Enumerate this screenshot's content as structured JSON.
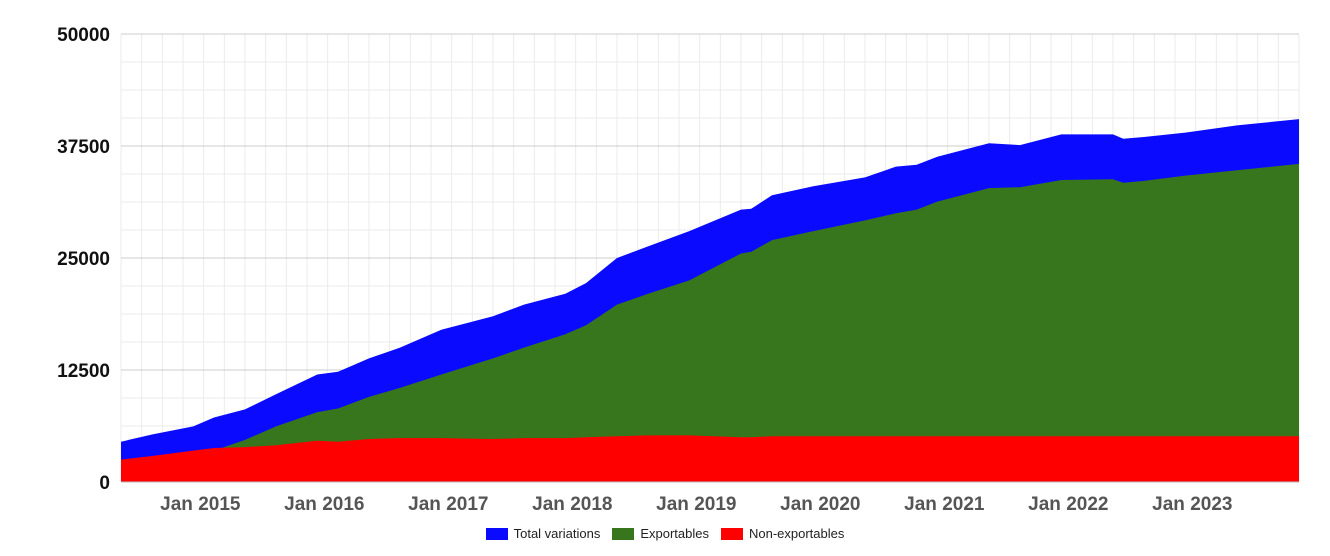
{
  "chart_data": {
    "type": "area",
    "stacked": false,
    "x_unit": "month",
    "x_start": "2014-06",
    "x_end": "2023-12",
    "ylim": [
      0,
      50000
    ],
    "yticks": [
      0,
      12500,
      25000,
      37500,
      50000
    ],
    "xticks": [
      "Jan 2015",
      "Jan 2016",
      "Jan 2017",
      "Jan 2018",
      "Jan 2019",
      "Jan 2020",
      "Jan 2021",
      "Jan 2022",
      "Jan 2023"
    ],
    "grid": true,
    "legend_position": "bottom",
    "title": "",
    "xlabel": "",
    "ylabel": "",
    "series": [
      {
        "name": "Total variations",
        "color": "#0a0aff",
        "points": [
          [
            "2014-06",
            4500
          ],
          [
            "2014-09",
            5300
          ],
          [
            "2015-01",
            6200
          ],
          [
            "2015-03",
            7200
          ],
          [
            "2015-06",
            8100
          ],
          [
            "2015-09",
            9800
          ],
          [
            "2016-01",
            12000
          ],
          [
            "2016-03",
            12300
          ],
          [
            "2016-06",
            13800
          ],
          [
            "2016-09",
            15000
          ],
          [
            "2017-01",
            17000
          ],
          [
            "2017-06",
            18500
          ],
          [
            "2017-09",
            19800
          ],
          [
            "2018-01",
            21000
          ],
          [
            "2018-03",
            22200
          ],
          [
            "2018-06",
            25000
          ],
          [
            "2018-09",
            26300
          ],
          [
            "2019-01",
            28000
          ],
          [
            "2019-06",
            30400
          ],
          [
            "2019-07",
            30500
          ],
          [
            "2019-09",
            32000
          ],
          [
            "2020-01",
            33000
          ],
          [
            "2020-06",
            34000
          ],
          [
            "2020-09",
            35200
          ],
          [
            "2020-11",
            35400
          ],
          [
            "2021-01",
            36300
          ],
          [
            "2021-06",
            37800
          ],
          [
            "2021-09",
            37600
          ],
          [
            "2022-01",
            38800
          ],
          [
            "2022-06",
            38800
          ],
          [
            "2022-07",
            38300
          ],
          [
            "2022-09",
            38500
          ],
          [
            "2023-01",
            39000
          ],
          [
            "2023-06",
            39800
          ],
          [
            "2023-12",
            40500
          ]
        ]
      },
      {
        "name": "Exportables",
        "color": "#38761d",
        "points": [
          [
            "2014-06",
            1800
          ],
          [
            "2014-09",
            2200
          ],
          [
            "2015-01",
            2900
          ],
          [
            "2015-03",
            3500
          ],
          [
            "2015-06",
            4700
          ],
          [
            "2015-09",
            6200
          ],
          [
            "2016-01",
            7800
          ],
          [
            "2016-03",
            8200
          ],
          [
            "2016-06",
            9500
          ],
          [
            "2016-09",
            10500
          ],
          [
            "2017-01",
            12000
          ],
          [
            "2017-06",
            13800
          ],
          [
            "2017-09",
            15000
          ],
          [
            "2018-01",
            16500
          ],
          [
            "2018-03",
            17500
          ],
          [
            "2018-06",
            19800
          ],
          [
            "2018-09",
            21000
          ],
          [
            "2019-01",
            22500
          ],
          [
            "2019-06",
            25500
          ],
          [
            "2019-07",
            25700
          ],
          [
            "2019-09",
            27000
          ],
          [
            "2020-01",
            28000
          ],
          [
            "2020-06",
            29200
          ],
          [
            "2020-09",
            30000
          ],
          [
            "2020-11",
            30400
          ],
          [
            "2021-01",
            31300
          ],
          [
            "2021-06",
            32800
          ],
          [
            "2021-09",
            32900
          ],
          [
            "2022-01",
            33700
          ],
          [
            "2022-06",
            33800
          ],
          [
            "2022-07",
            33400
          ],
          [
            "2022-09",
            33600
          ],
          [
            "2023-01",
            34200
          ],
          [
            "2023-06",
            34800
          ],
          [
            "2023-12",
            35500
          ]
        ]
      },
      {
        "name": "Non-exportables",
        "color": "#ff0000",
        "points": [
          [
            "2014-06",
            2500
          ],
          [
            "2014-09",
            2900
          ],
          [
            "2015-01",
            3500
          ],
          [
            "2015-03",
            3800
          ],
          [
            "2015-06",
            3900
          ],
          [
            "2015-09",
            4100
          ],
          [
            "2016-01",
            4600
          ],
          [
            "2016-03",
            4500
          ],
          [
            "2016-06",
            4800
          ],
          [
            "2016-09",
            4900
          ],
          [
            "2017-01",
            4900
          ],
          [
            "2017-06",
            4800
          ],
          [
            "2017-09",
            4900
          ],
          [
            "2018-01",
            4900
          ],
          [
            "2018-03",
            5000
          ],
          [
            "2018-06",
            5100
          ],
          [
            "2018-09",
            5200
          ],
          [
            "2019-01",
            5200
          ],
          [
            "2019-06",
            5000
          ],
          [
            "2019-07",
            5000
          ],
          [
            "2019-09",
            5100
          ],
          [
            "2020-01",
            5100
          ],
          [
            "2020-06",
            5100
          ],
          [
            "2020-09",
            5100
          ],
          [
            "2020-11",
            5100
          ],
          [
            "2021-01",
            5100
          ],
          [
            "2021-06",
            5100
          ],
          [
            "2021-09",
            5100
          ],
          [
            "2022-01",
            5100
          ],
          [
            "2022-06",
            5100
          ],
          [
            "2022-07",
            5100
          ],
          [
            "2022-09",
            5100
          ],
          [
            "2023-01",
            5100
          ],
          [
            "2023-06",
            5100
          ],
          [
            "2023-12",
            5100
          ]
        ]
      }
    ]
  }
}
